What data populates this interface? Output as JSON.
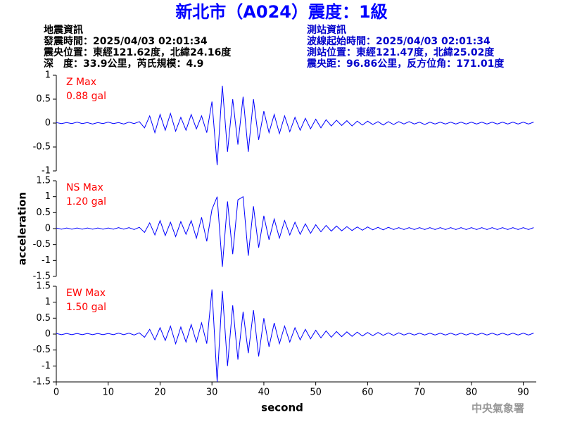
{
  "title": "新北市（A024）震度：1級",
  "quake_info": {
    "heading": "地震資訊",
    "time": "發震時間：2025/04/03 02:01:34",
    "location": "震央位置：東經121.62度，北緯24.16度",
    "depth": "深　度：33.9公里，芮氏規模：4.9"
  },
  "station_info": {
    "heading": "測站資訊",
    "time": "波線起始時間：2025/04/03 02:01:34",
    "location": "測站位置：東經121.47度，北緯25.02度",
    "distance": "震央距：96.86公里，反方位角：171.01度"
  },
  "footer": "中央氣象署",
  "chart_data": [
    {
      "type": "line",
      "annotation": "Z Max",
      "max_label": "0.88 gal",
      "color": "#0000ff",
      "xlim": [
        0,
        92.5
      ],
      "ylim": [
        -1,
        1
      ],
      "yticks": [
        -1,
        -0.5,
        0,
        0.5,
        1
      ],
      "x": [
        0,
        1,
        2,
        3,
        4,
        5,
        6,
        7,
        8,
        9,
        10,
        11,
        12,
        13,
        14,
        15,
        16,
        17,
        18,
        19,
        20,
        21,
        22,
        23,
        24,
        25,
        26,
        27,
        28,
        29,
        30,
        31,
        32,
        33,
        34,
        35,
        36,
        37,
        38,
        39,
        40,
        41,
        42,
        43,
        44,
        45,
        46,
        47,
        48,
        49,
        50,
        51,
        52,
        53,
        54,
        55,
        56,
        57,
        58,
        59,
        60,
        61,
        62,
        63,
        64,
        65,
        66,
        67,
        68,
        69,
        70,
        71,
        72,
        73,
        74,
        75,
        76,
        77,
        78,
        79,
        80,
        81,
        82,
        83,
        84,
        85,
        86,
        87,
        88,
        89,
        90,
        91,
        92
      ],
      "values": [
        0.01,
        -0.01,
        0.01,
        -0.01,
        0.02,
        -0.01,
        0.01,
        -0.02,
        0.01,
        -0.01,
        0.02,
        -0.01,
        0.01,
        -0.02,
        0.02,
        -0.01,
        0.03,
        -0.1,
        0.15,
        -0.2,
        0.18,
        -0.15,
        0.2,
        -0.17,
        0.12,
        -0.15,
        0.18,
        -0.12,
        0.15,
        -0.2,
        0.45,
        -0.88,
        0.78,
        -0.6,
        0.5,
        -0.45,
        0.55,
        -0.6,
        0.5,
        -0.35,
        0.25,
        -0.2,
        0.18,
        -0.22,
        0.15,
        -0.18,
        0.12,
        -0.15,
        0.1,
        -0.12,
        0.08,
        -0.1,
        0.07,
        -0.06,
        0.06,
        -0.05,
        0.05,
        -0.06,
        0.04,
        -0.04,
        0.04,
        -0.03,
        0.03,
        -0.04,
        0.03,
        -0.03,
        0.03,
        -0.02,
        0.03,
        -0.02,
        0.02,
        -0.03,
        0.02,
        -0.02,
        0.02,
        -0.02,
        0.02,
        -0.02,
        0.02,
        -0.02,
        0.02,
        -0.02,
        0.02,
        -0.02,
        0.02,
        -0.02,
        0.02,
        -0.02,
        0.02,
        -0.02,
        0.02,
        -0.02,
        0.02
      ]
    },
    {
      "type": "line",
      "annotation": "NS Max",
      "max_label": "1.20 gal",
      "color": "#0000ff",
      "ylabel": "acceleration",
      "xlim": [
        0,
        92.5
      ],
      "ylim": [
        -1.5,
        1.5
      ],
      "yticks": [
        -1.5,
        -1,
        -0.5,
        0,
        0.5,
        1,
        1.5
      ],
      "x": [
        0,
        1,
        2,
        3,
        4,
        5,
        6,
        7,
        8,
        9,
        10,
        11,
        12,
        13,
        14,
        15,
        16,
        17,
        18,
        19,
        20,
        21,
        22,
        23,
        24,
        25,
        26,
        27,
        28,
        29,
        30,
        31,
        32,
        33,
        34,
        35,
        36,
        37,
        38,
        39,
        40,
        41,
        42,
        43,
        44,
        45,
        46,
        47,
        48,
        49,
        50,
        51,
        52,
        53,
        54,
        55,
        56,
        57,
        58,
        59,
        60,
        61,
        62,
        63,
        64,
        65,
        66,
        67,
        68,
        69,
        70,
        71,
        72,
        73,
        74,
        75,
        76,
        77,
        78,
        79,
        80,
        81,
        82,
        83,
        84,
        85,
        86,
        87,
        88,
        89,
        90,
        91,
        92
      ],
      "values": [
        0.02,
        -0.02,
        0.02,
        -0.02,
        0.02,
        -0.02,
        0.02,
        -0.02,
        0.02,
        -0.02,
        0.02,
        -0.02,
        0.03,
        -0.02,
        0.03,
        -0.03,
        0.04,
        -0.12,
        0.18,
        -0.2,
        0.25,
        -0.22,
        0.2,
        -0.25,
        0.22,
        -0.18,
        0.25,
        -0.3,
        0.35,
        -0.4,
        0.6,
        1.0,
        -1.2,
        0.85,
        -0.8,
        0.9,
        1.0,
        -0.85,
        0.7,
        -0.6,
        0.4,
        -0.35,
        0.3,
        -0.3,
        0.25,
        -0.2,
        0.2,
        -0.18,
        0.15,
        -0.15,
        0.12,
        -0.1,
        0.1,
        -0.08,
        0.08,
        -0.07,
        0.06,
        -0.06,
        0.05,
        -0.05,
        0.05,
        -0.04,
        0.04,
        -0.04,
        0.04,
        -0.03,
        0.03,
        -0.03,
        0.03,
        -0.03,
        0.03,
        -0.03,
        0.03,
        -0.03,
        0.03,
        -0.03,
        0.03,
        -0.03,
        0.03,
        -0.03,
        0.03,
        -0.03,
        0.03,
        -0.03,
        0.03,
        -0.03,
        0.03,
        -0.03,
        0.03,
        -0.03,
        0.03,
        -0.03,
        0.03
      ]
    },
    {
      "type": "line",
      "annotation": "EW Max",
      "max_label": "1.50 gal",
      "color": "#0000ff",
      "xlabel": "second",
      "xlim": [
        0,
        92.5
      ],
      "ylim": [
        -1.5,
        1.5
      ],
      "yticks": [
        -1.5,
        -1,
        -0.5,
        0,
        0.5,
        1,
        1.5
      ],
      "xticks": [
        0,
        10,
        20,
        30,
        40,
        50,
        60,
        70,
        80,
        90
      ],
      "x": [
        0,
        1,
        2,
        3,
        4,
        5,
        6,
        7,
        8,
        9,
        10,
        11,
        12,
        13,
        14,
        15,
        16,
        17,
        18,
        19,
        20,
        21,
        22,
        23,
        24,
        25,
        26,
        27,
        28,
        29,
        30,
        31,
        32,
        33,
        34,
        35,
        36,
        37,
        38,
        39,
        40,
        41,
        42,
        43,
        44,
        45,
        46,
        47,
        48,
        49,
        50,
        51,
        52,
        53,
        54,
        55,
        56,
        57,
        58,
        59,
        60,
        61,
        62,
        63,
        64,
        65,
        66,
        67,
        68,
        69,
        70,
        71,
        72,
        73,
        74,
        75,
        76,
        77,
        78,
        79,
        80,
        81,
        82,
        83,
        84,
        85,
        86,
        87,
        88,
        89,
        90,
        91,
        92
      ],
      "values": [
        0.02,
        -0.02,
        0.02,
        -0.02,
        0.02,
        -0.02,
        0.02,
        -0.02,
        0.02,
        -0.02,
        0.02,
        -0.02,
        0.03,
        -0.02,
        0.03,
        -0.03,
        0.04,
        -0.1,
        0.15,
        -0.18,
        0.2,
        -0.2,
        0.25,
        -0.3,
        0.22,
        -0.25,
        0.3,
        -0.25,
        0.35,
        -0.3,
        1.4,
        -1.5,
        1.35,
        -1.0,
        0.9,
        -0.8,
        0.7,
        -0.6,
        0.75,
        -0.7,
        0.5,
        -0.4,
        0.35,
        -0.3,
        0.25,
        -0.25,
        0.2,
        -0.18,
        0.15,
        -0.15,
        0.12,
        -0.12,
        0.1,
        -0.1,
        0.08,
        -0.08,
        0.07,
        -0.07,
        0.06,
        -0.06,
        0.05,
        -0.05,
        0.05,
        -0.04,
        0.04,
        -0.04,
        0.04,
        -0.03,
        0.03,
        -0.03,
        0.03,
        -0.03,
        0.03,
        -0.03,
        0.03,
        -0.03,
        0.03,
        -0.03,
        0.03,
        -0.03,
        0.03,
        -0.03,
        0.03,
        -0.03,
        0.03,
        -0.03,
        0.03,
        -0.03,
        0.03,
        -0.03,
        0.03,
        -0.03,
        0.03
      ]
    }
  ]
}
